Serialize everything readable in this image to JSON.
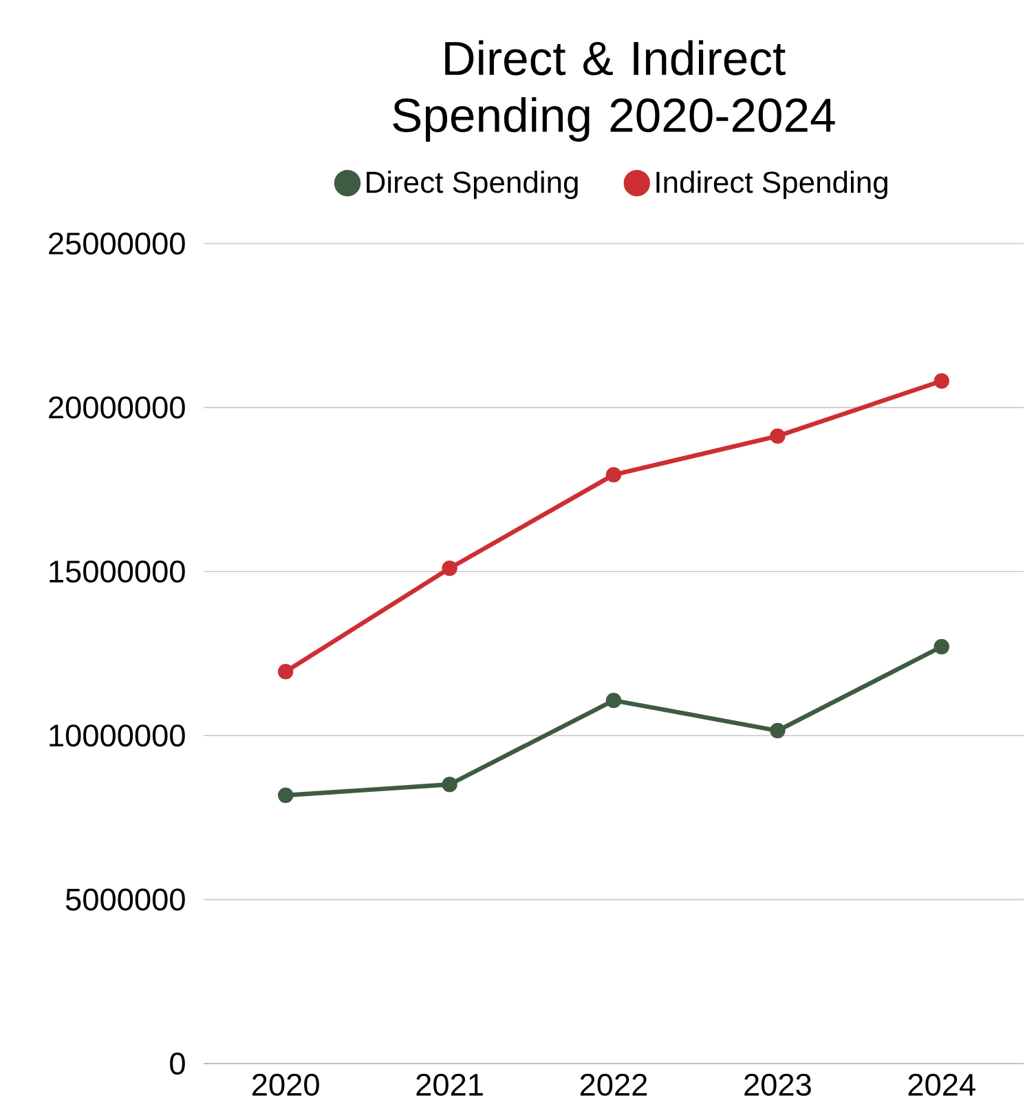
{
  "chart_data": {
    "type": "line",
    "title": "Direct & Indirect Spending 2020-2024",
    "categories": [
      "2020",
      "2021",
      "2022",
      "2023",
      "2024"
    ],
    "series": [
      {
        "name": "Direct Spending",
        "color": "#3d5c42",
        "values": [
          8180000,
          8510000,
          11070000,
          10150000,
          12710000
        ]
      },
      {
        "name": "Indirect Spending",
        "color": "#cc2f33",
        "values": [
          11950000,
          15100000,
          17950000,
          19130000,
          20810000
        ]
      }
    ],
    "ylim": [
      0,
      25000000
    ],
    "yticks": [
      0,
      5000000,
      10000000,
      15000000,
      20000000,
      25000000
    ],
    "grid": "y",
    "legend": "top",
    "marker": "circle",
    "line_style": "solid"
  }
}
